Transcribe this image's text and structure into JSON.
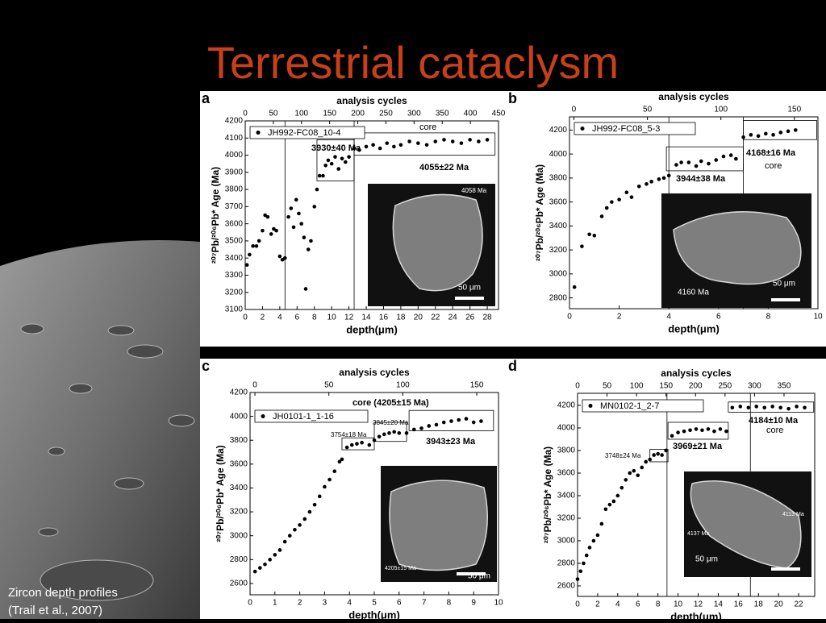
{
  "slide": {
    "title": "Terrestrial cataclysm",
    "caption": [
      "Zircon depth profiles",
      "(Trail et al., 2007)"
    ]
  },
  "chart_data": [
    {
      "type": "scatter",
      "panel": "a",
      "top_axis_label": "analysis cycles",
      "top_xlim": [
        0,
        450
      ],
      "top_xticks": [
        0,
        50,
        100,
        150,
        200,
        250,
        300,
        350,
        400,
        450
      ],
      "xlabel": "depth(μm)",
      "ylabel": "²⁰⁷Pb/²⁰⁶Pb* Age (Ma)",
      "xlim": [
        0,
        29.3
      ],
      "ylim": [
        3100,
        4200
      ],
      "xticks": [
        0,
        2,
        4,
        6,
        8,
        10,
        12,
        14,
        16,
        18,
        20,
        22,
        24,
        26,
        28
      ],
      "yticks": [
        3100,
        3200,
        3300,
        3400,
        3500,
        3600,
        3700,
        3800,
        3900,
        4000,
        4100,
        4200
      ],
      "series": [
        {
          "name": "JH992-FC08_10-4",
          "color": "#000000",
          "x": [
            0.2,
            0.5,
            0.9,
            1.3,
            1.6,
            2.0,
            2.3,
            2.6,
            3.0,
            3.3,
            3.6,
            4.0,
            4.3,
            4.6,
            5.0,
            5.3,
            5.6,
            5.9,
            6.2,
            6.5,
            6.8,
            7.0,
            7.3,
            7.6,
            8.0,
            8.3,
            8.6,
            9.0,
            9.3,
            9.6,
            10.0,
            10.4,
            10.8,
            11.2,
            11.6,
            12.0,
            12.6,
            13.2,
            14,
            14.8,
            15.6,
            16.4,
            17.2,
            18,
            19,
            20,
            21,
            22,
            23,
            24,
            25,
            26,
            27,
            28
          ],
          "values": [
            3360,
            3420,
            3470,
            3470,
            3500,
            3560,
            3650,
            3640,
            3540,
            3570,
            3560,
            3410,
            3390,
            3400,
            3640,
            3690,
            3580,
            3740,
            3660,
            3600,
            3520,
            3220,
            3450,
            3500,
            3700,
            3800,
            3880,
            3880,
            3940,
            3970,
            3950,
            3990,
            3920,
            3980,
            3960,
            3990,
            4040,
            4030,
            4050,
            4060,
            4040,
            4070,
            4050,
            4060,
            4080,
            4070,
            4060,
            4080,
            4090,
            4080,
            4070,
            4090,
            4080,
            4090
          ]
        }
      ],
      "annotations": [
        "3930±40 Ma",
        "4055±22 Ma",
        "core",
        "4058 Ma",
        "50 μm"
      ]
    },
    {
      "type": "scatter",
      "panel": "b",
      "top_axis_label": "analysis cycles",
      "top_xlim": [
        -3,
        166
      ],
      "top_xticks": [
        0,
        50,
        100,
        150
      ],
      "xlabel": "depth(μm)",
      "ylabel": "²⁰⁷Pb/²⁰⁶Pb* Age (Ma)",
      "xlim": [
        0,
        10
      ],
      "ylim": [
        2710,
        4310
      ],
      "xticks": [
        0,
        2,
        4,
        6,
        8,
        10
      ],
      "yticks": [
        2800,
        3000,
        3200,
        3400,
        3600,
        3800,
        4000,
        4200
      ],
      "series": [
        {
          "name": "JH992-FC08_5-3",
          "color": "#000000",
          "x": [
            0.2,
            0.5,
            0.8,
            1,
            1.3,
            1.5,
            1.7,
            2,
            2.3,
            2.5,
            2.8,
            3.1,
            3.3,
            3.6,
            3.8,
            4,
            4.3,
            4.5,
            4.8,
            5.1,
            5.3,
            5.6,
            5.9,
            6.2,
            6.5,
            6.7,
            7.0,
            7.3,
            7.6,
            7.9,
            8.2,
            8.5,
            8.8,
            9.1
          ],
          "values": [
            2890,
            3230,
            3330,
            3320,
            3480,
            3550,
            3600,
            3620,
            3680,
            3640,
            3730,
            3750,
            3770,
            3790,
            3800,
            3820,
            3910,
            3930,
            3930,
            3900,
            3940,
            3920,
            3950,
            3980,
            3990,
            3960,
            4140,
            4160,
            4150,
            4170,
            4160,
            4180,
            4190,
            4200
          ]
        }
      ],
      "annotations": [
        "3944±38 Ma",
        "4168±16 Ma",
        "core",
        "4160 Ma",
        "50 μm"
      ]
    },
    {
      "type": "scatter",
      "panel": "c",
      "top_axis_label": "analysis cycles",
      "top_xlim": [
        -3.3,
        164.7
      ],
      "top_xticks": [
        0,
        50,
        100,
        150
      ],
      "xlabel": "depth(μm)",
      "ylabel": "²⁰⁷Pb/²⁰⁶Pb* Age (Ma)",
      "xlim": [
        0,
        10
      ],
      "ylim": [
        2505,
        4200
      ],
      "xticks": [
        0,
        1,
        2,
        3,
        4,
        5,
        6,
        7,
        8,
        9,
        10
      ],
      "yticks": [
        2600,
        2800,
        3000,
        3200,
        3400,
        3600,
        3800,
        4000,
        4200
      ],
      "series": [
        {
          "name": "JH0101-1_1-16",
          "color": "#000000",
          "x": [
            0.2,
            0.4,
            0.6,
            0.8,
            1.0,
            1.2,
            1.4,
            1.6,
            1.8,
            2.0,
            2.2,
            2.4,
            2.6,
            2.8,
            3.0,
            3.2,
            3.4,
            3.6,
            3.7,
            3.9,
            4.1,
            4.3,
            4.5,
            4.8,
            5.0,
            5.2,
            5.4,
            5.6,
            5.8,
            6.0,
            6.3,
            6.6,
            6.9,
            7.2,
            7.5,
            7.8,
            8.1,
            8.4,
            8.7,
            9.0,
            9.3
          ],
          "values": [
            2700,
            2730,
            2760,
            2800,
            2840,
            2880,
            2950,
            3000,
            3050,
            3090,
            3140,
            3200,
            3260,
            3330,
            3410,
            3470,
            3540,
            3620,
            3640,
            3740,
            3760,
            3770,
            3780,
            3760,
            3800,
            3830,
            3850,
            3860,
            3870,
            3860,
            3860,
            3890,
            3900,
            3920,
            3930,
            3950,
            3960,
            3970,
            3980,
            3950,
            3960
          ]
        }
      ],
      "annotations": [
        "core (4205±15 Ma)",
        "3754±18 Ma",
        "3845±20 Ma",
        "3943±23 Ma",
        "4205±15 Ma",
        "50 μm"
      ]
    },
    {
      "type": "scatter",
      "panel": "d",
      "top_axis_label": "analysis cycles",
      "top_xlim": [
        0,
        402
      ],
      "top_xticks": [
        0,
        50,
        100,
        150,
        200,
        250,
        300,
        350
      ],
      "xlabel": "depth(μm)",
      "ylabel": "²⁰⁷Pb/²⁰⁶Pb* Age (Ma)",
      "xlim": [
        0,
        23.6
      ],
      "ylim": [
        2507,
        4307
      ],
      "xticks": [
        0,
        2,
        4,
        6,
        8,
        10,
        12,
        14,
        16,
        18,
        20,
        22
      ],
      "yticks": [
        2600,
        2800,
        3000,
        3200,
        3400,
        3600,
        3800,
        4000,
        4200
      ],
      "series": [
        {
          "name": "MN0102-1_2-7",
          "color": "#000000",
          "x": [
            0,
            0.3,
            0.6,
            0.9,
            1.2,
            1.6,
            2,
            2.4,
            2.8,
            3.2,
            3.6,
            4,
            4.4,
            4.8,
            5.2,
            5.6,
            6,
            6.4,
            6.8,
            7.2,
            7.6,
            8,
            8.4,
            8.8,
            9.4,
            10,
            10.6,
            11.2,
            11.8,
            12.4,
            13,
            13.6,
            14.2,
            14.8,
            15.4,
            16.2,
            17,
            17.8,
            18.6,
            19.4,
            20.2,
            21,
            21.8,
            22.6
          ],
          "values": [
            2660,
            2730,
            2800,
            2870,
            2940,
            3000,
            3050,
            3150,
            3280,
            3320,
            3350,
            3400,
            3470,
            3540,
            3600,
            3620,
            3580,
            3650,
            3700,
            3720,
            3760,
            3770,
            3760,
            3800,
            3930,
            3960,
            3970,
            3980,
            3990,
            3980,
            3990,
            3970,
            3990,
            3970,
            4180,
            4190,
            4180,
            4190,
            4180,
            4190,
            4180,
            4170,
            4190,
            4180
          ]
        }
      ],
      "annotations": [
        "3748±24 Ma",
        "3969±21 Ma",
        "4184±10 Ma",
        "core",
        "4137 Ma",
        "4113 Ma",
        "50 μm"
      ]
    }
  ]
}
